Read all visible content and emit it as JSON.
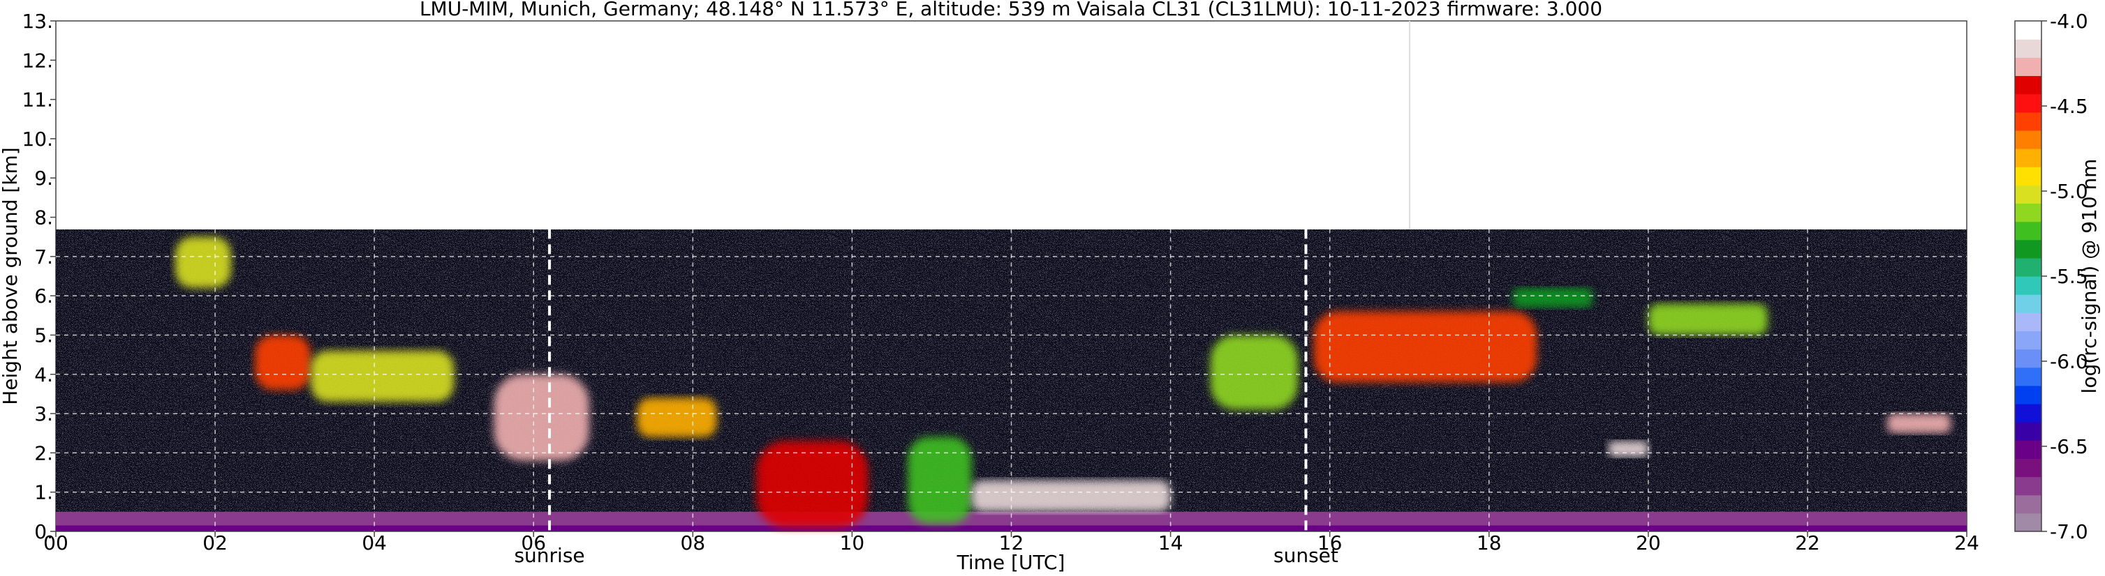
{
  "chart_data": {
    "type": "heatmap",
    "title": "LMU-MIM, Munich, Germany; 48.148° N 11.573° E, altitude: 539 m    Vaisala CL31 (CL31LMU): 10-11-2023    firmware: 3.000",
    "xlabel": "Time [UTC]",
    "ylabel": "Height above ground [km]",
    "xlim": [
      0,
      24
    ],
    "ylim": [
      0,
      13
    ],
    "x_ticks": [
      "00",
      "02",
      "04",
      "06",
      "08",
      "10",
      "12",
      "14",
      "16",
      "18",
      "20",
      "22",
      "24"
    ],
    "y_ticks": [
      "0.",
      "1.",
      "2.",
      "3.",
      "4.",
      "5.",
      "6.",
      "7.",
      "8.",
      "9.",
      "10.",
      "11.",
      "12.",
      "13."
    ],
    "grid": true,
    "colorbar": {
      "label": "log(rc-signal) @ 910 nm",
      "range": [
        -7.0,
        -4.0
      ],
      "ticks": [
        "-7.0",
        "-6.5",
        "-6.0",
        "-5.5",
        "-5.0",
        "-4.5",
        "-4.0"
      ],
      "colors": [
        "#a08aa8",
        "#9a6d9c",
        "#8a3b8e",
        "#7a107e",
        "#6a0088",
        "#3a00a8",
        "#1010d8",
        "#0040f0",
        "#3070f8",
        "#6a90f8",
        "#8aa6f8",
        "#a8b8f8",
        "#70d0e8",
        "#30c8b8",
        "#20b070",
        "#109820",
        "#40c020",
        "#90d820",
        "#d8e020",
        "#ffe000",
        "#ffb000",
        "#ff8000",
        "#ff4000",
        "#ff1010",
        "#e00000",
        "#f0b0b0",
        "#e8d8d8",
        "#ffffff"
      ]
    },
    "annotations": [
      {
        "text": "sunrise",
        "x": 6.2
      },
      {
        "text": "sunset",
        "x": 15.7
      }
    ],
    "series": [
      {
        "values": [
          {
            "x0": 0.0,
            "x1": 24.0,
            "y0": 0.0,
            "y1": 0.15,
            "level": -6.5
          },
          {
            "x0": 0.0,
            "x1": 24.0,
            "y0": 0.15,
            "y1": 0.5,
            "level": -6.7
          },
          {
            "x0": 1.5,
            "x1": 2.2,
            "y0": 6.2,
            "y1": 7.5,
            "level": -5.0
          },
          {
            "x0": 2.5,
            "x1": 3.2,
            "y0": 3.6,
            "y1": 5.0,
            "level": -4.6
          },
          {
            "x0": 3.2,
            "x1": 5.0,
            "y0": 3.3,
            "y1": 4.6,
            "level": -5.0
          },
          {
            "x0": 5.5,
            "x1": 6.7,
            "y0": 1.8,
            "y1": 4.0,
            "level": -4.3
          },
          {
            "x0": 7.3,
            "x1": 8.3,
            "y0": 2.4,
            "y1": 3.4,
            "level": -4.8
          },
          {
            "x0": 8.8,
            "x1": 10.2,
            "y0": 0.1,
            "y1": 2.3,
            "level": -4.4
          },
          {
            "x0": 10.7,
            "x1": 11.5,
            "y0": 0.2,
            "y1": 2.4,
            "level": -5.2
          },
          {
            "x0": 11.5,
            "x1": 14.0,
            "y0": 0.5,
            "y1": 1.3,
            "level": -4.2
          },
          {
            "x0": 14.5,
            "x1": 15.6,
            "y0": 3.1,
            "y1": 5.0,
            "level": -5.1
          },
          {
            "x0": 15.8,
            "x1": 18.6,
            "y0": 3.8,
            "y1": 5.6,
            "level": -4.6
          },
          {
            "x0": 18.3,
            "x1": 19.3,
            "y0": 5.7,
            "y1": 6.2,
            "level": -5.3
          },
          {
            "x0": 20.0,
            "x1": 21.5,
            "y0": 5.0,
            "y1": 5.8,
            "level": -5.1
          },
          {
            "x0": 19.5,
            "x1": 20.0,
            "y0": 1.9,
            "y1": 2.3,
            "level": -4.2
          },
          {
            "x0": 23.0,
            "x1": 23.8,
            "y0": 2.5,
            "y1": 3.0,
            "level": -4.3
          }
        ]
      }
    ]
  }
}
